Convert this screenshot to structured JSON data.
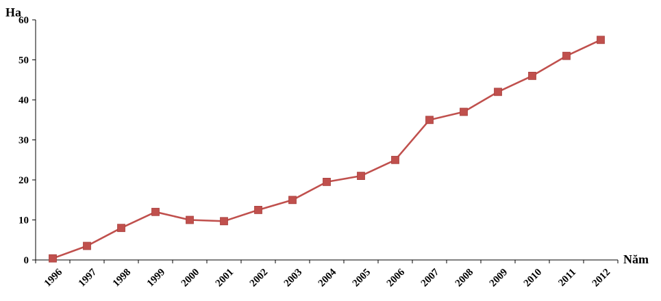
{
  "chart_data": {
    "type": "line",
    "title": "",
    "ylabel": "Ha",
    "xlabel": "Năm",
    "ylim": [
      0,
      60
    ],
    "yticks": [
      0,
      10,
      20,
      30,
      40,
      50,
      60
    ],
    "grid": false,
    "categories": [
      "1996",
      "1997",
      "1998",
      "1999",
      "2000",
      "2001",
      "2002",
      "2003",
      "2004",
      "2005",
      "2006",
      "2007",
      "2008",
      "2009",
      "2010",
      "2011",
      "2012"
    ],
    "series": [
      {
        "values": [
          0.4,
          3.5,
          8,
          12,
          10,
          9.7,
          12.5,
          15,
          19.5,
          21,
          25,
          35,
          37,
          42,
          46,
          51,
          55
        ]
      }
    ],
    "colors": {
      "line": "#c0504d",
      "marker": "#c0504d",
      "axis": "#000000"
    }
  }
}
